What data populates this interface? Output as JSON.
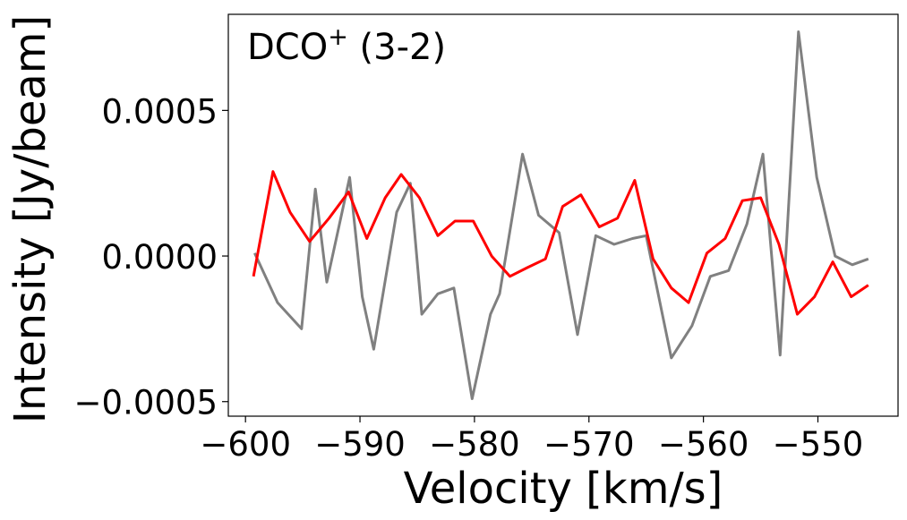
{
  "chart_data": {
    "type": "line",
    "title": "",
    "annotation": {
      "main": "DCO",
      "sup": "+",
      "rest": " (3-2)"
    },
    "xlabel": "Velocity [km/s]",
    "ylabel": "Intensity [Jy/beam]",
    "xlim": [
      -601.5,
      -543.0
    ],
    "ylim": [
      -0.00055,
      0.00083
    ],
    "xticks": [
      -600,
      -590,
      -580,
      -570,
      -560,
      -550
    ],
    "xtick_labels": [
      "−600",
      "−590",
      "−580",
      "−570",
      "−560",
      "−550"
    ],
    "yticks": [
      0.0005,
      0.0,
      -0.0005
    ],
    "ytick_labels": [
      "0.0005",
      "0.0000",
      "−0.0005"
    ],
    "grid": false,
    "legend": "none",
    "series": [
      {
        "color": "#808080",
        "x": [
          -599.2,
          -597.2,
          -595.1,
          -593.9,
          -592.9,
          -590.9,
          -589.8,
          -588.8,
          -586.8,
          -585.6,
          -584.6,
          -583.2,
          -581.8,
          -580.2,
          -578.6,
          -577.8,
          -575.8,
          -574.4,
          -572.6,
          -571.0,
          -569.4,
          -567.8,
          -566.2,
          -565.0,
          -562.8,
          -561.0,
          -559.4,
          -557.8,
          -556.2,
          -554.8,
          -553.3,
          -551.7,
          -550.1,
          -548.5,
          -547.0,
          -545.6
        ],
        "values": [
          1e-05,
          -0.00016,
          -0.00025,
          0.00023,
          -9e-05,
          0.00027,
          -0.00014,
          -0.00032,
          0.00015,
          0.00025,
          -0.0002,
          -0.00013,
          -0.00011,
          -0.00049,
          -0.0002,
          -0.00013,
          0.00035,
          0.00014,
          8e-05,
          -0.00027,
          7e-05,
          4e-05,
          6e-05,
          7e-05,
          -0.00035,
          -0.00024,
          -7e-05,
          -5e-05,
          0.00011,
          0.00035,
          -0.00034,
          0.00077,
          0.00027,
          0.0,
          -3e-05,
          -1e-05
        ]
      },
      {
        "color": "#ff0000",
        "x": [
          -599.3,
          -597.6,
          -596.1,
          -594.4,
          -592.7,
          -591.0,
          -589.4,
          -587.8,
          -586.4,
          -584.8,
          -583.2,
          -581.7,
          -580.1,
          -578.5,
          -576.9,
          -575.4,
          -573.8,
          -572.3,
          -570.7,
          -569.1,
          -567.5,
          -566.0,
          -564.4,
          -562.8,
          -561.3,
          -559.7,
          -558.1,
          -556.6,
          -555.0,
          -553.4,
          -551.8,
          -550.3,
          -548.7,
          -547.1,
          -545.6
        ],
        "values": [
          -7e-05,
          0.00029,
          0.00015,
          5e-05,
          0.00013,
          0.00022,
          6e-05,
          0.0002,
          0.00028,
          0.0002,
          7e-05,
          0.00012,
          0.00012,
          0.0,
          -7e-05,
          -4e-05,
          -1e-05,
          0.00017,
          0.00021,
          0.0001,
          0.00013,
          0.00026,
          -1e-05,
          -0.00011,
          -0.00016,
          1e-05,
          6e-05,
          0.00019,
          0.0002,
          4e-05,
          -0.0002,
          -0.00014,
          -2e-05,
          -0.00014,
          -0.0001
        ]
      }
    ]
  }
}
